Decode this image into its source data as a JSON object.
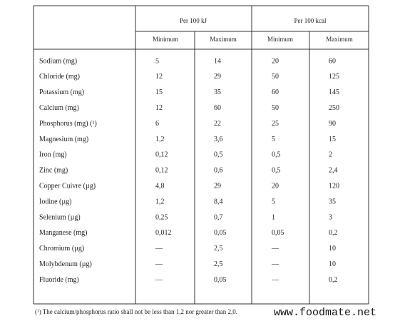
{
  "table": {
    "group_headers": [
      "Per 100 kJ",
      "Per 100 kcal"
    ],
    "sub_headers": [
      "Minimum",
      "Maximum",
      "Minimum",
      "Maximum"
    ],
    "rows": [
      [
        "Sodium (mg)",
        "5",
        "14",
        "20",
        "60"
      ],
      [
        "Chloride (mg)",
        "12",
        "29",
        "50",
        "125"
      ],
      [
        "Potassium (mg)",
        "15",
        "35",
        "60",
        "145"
      ],
      [
        "Calcium (mg)",
        "12",
        "60",
        "50",
        "250"
      ],
      [
        "Phosphorus (mg) (¹)",
        "6",
        "22",
        "25",
        "90"
      ],
      [
        "Magnesium (mg)",
        "1,2",
        "3,6",
        "5",
        "15"
      ],
      [
        "Iron (mg)",
        "0,12",
        "0,5",
        "0,5",
        "2"
      ],
      [
        "Zinc (mg)",
        "0,12",
        "0,6",
        "0,5",
        "2,4"
      ],
      [
        "Copper Cuivre (µg)",
        "4,8",
        "29",
        "20",
        "120"
      ],
      [
        "Iodine (µg)",
        "1,2",
        "8,4",
        "5",
        "35"
      ],
      [
        "Selenium (µg)",
        "0,25",
        "0,7",
        "1",
        "3"
      ],
      [
        "Manganese (mg)",
        "0,012",
        "0,05",
        "0,05",
        "0,2"
      ],
      [
        "Chromium (µg)",
        "—",
        "2,5",
        "—",
        "10"
      ],
      [
        "Molybdenum (µg)",
        "—",
        "2,5",
        "—",
        "10"
      ],
      [
        "Fluoride (mg)",
        "—",
        "0,05",
        "—",
        "0,2"
      ]
    ],
    "footnote": "(¹) The calcium/phosphorus ratio shall not be less than 1,2 nor greater than 2,0."
  },
  "watermark": "www.foodmate.net"
}
